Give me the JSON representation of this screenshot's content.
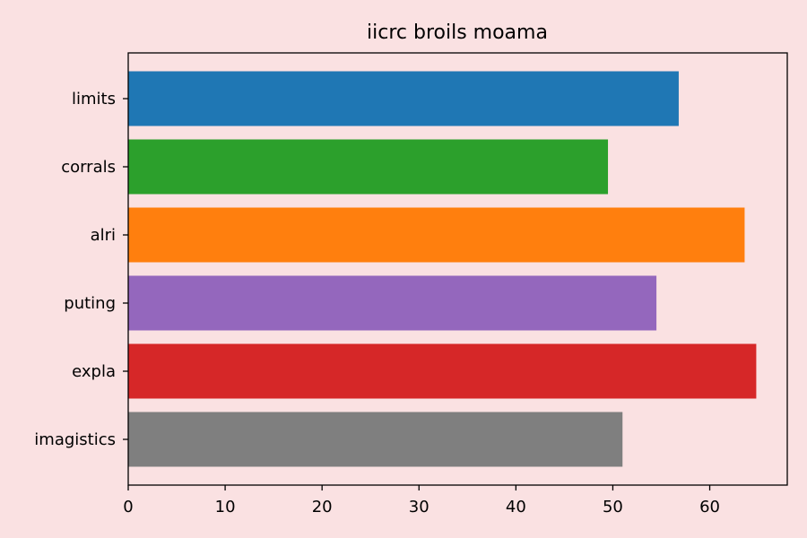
{
  "chart_data": {
    "type": "bar",
    "orientation": "horizontal",
    "title": "iicrc broils moama",
    "xlabel": "",
    "ylabel": "",
    "categories": [
      "limits",
      "corrals",
      "alri",
      "puting",
      "expla",
      "imagistics"
    ],
    "values": [
      56.8,
      49.5,
      63.6,
      54.5,
      64.8,
      51.0
    ],
    "colors": [
      "#1f77b4",
      "#2ca02c",
      "#ff7f0e",
      "#9467bd",
      "#d62728",
      "#7f7f7f"
    ],
    "xlim": [
      0,
      68
    ],
    "xticks": [
      0,
      10,
      20,
      30,
      40,
      50,
      60
    ],
    "grid": false,
    "background": "#fae1e2"
  }
}
